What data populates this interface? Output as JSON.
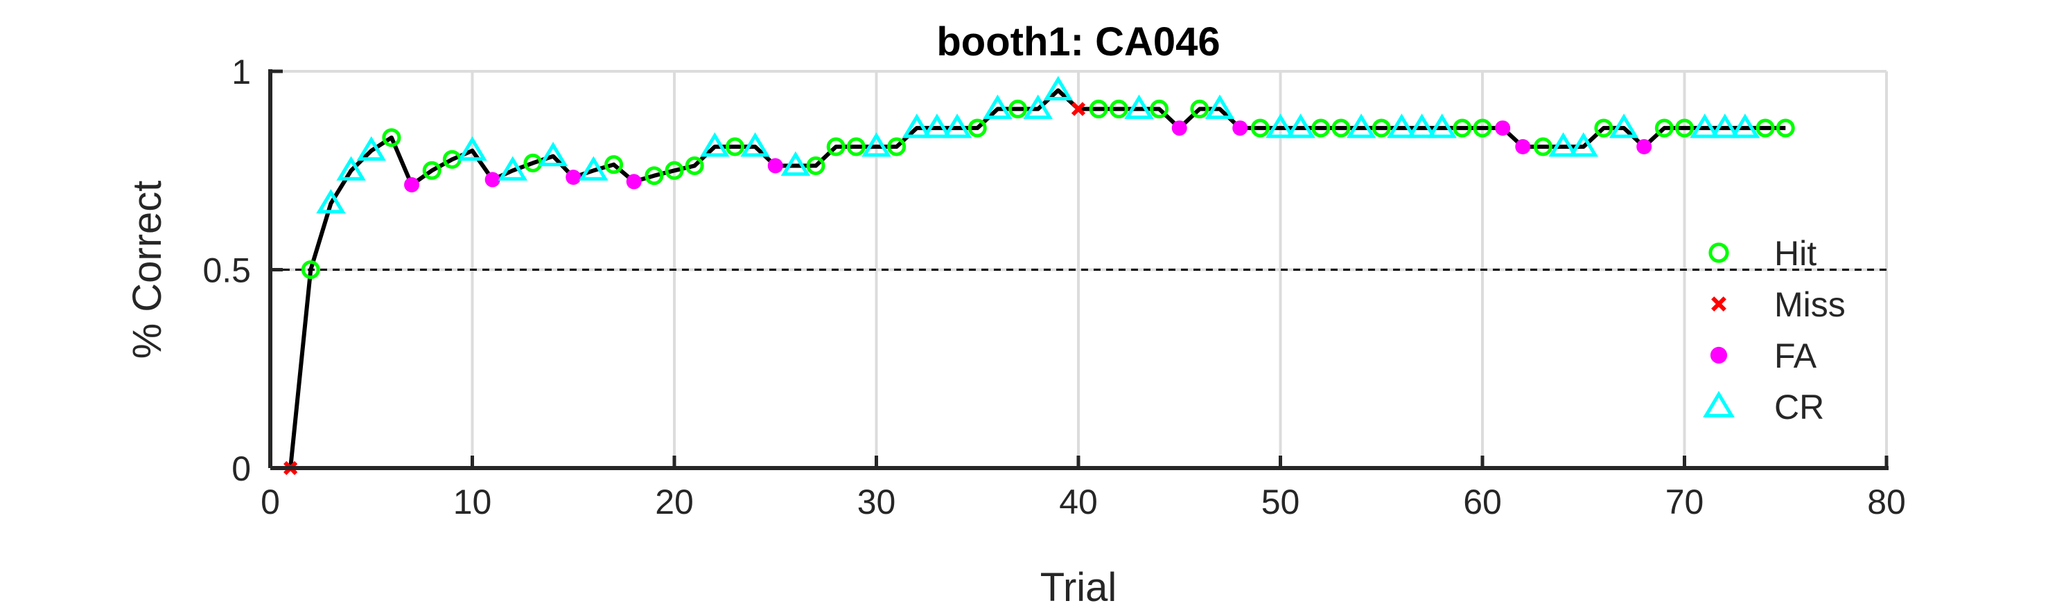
{
  "chart_data": {
    "type": "line",
    "title": "booth1: CA046",
    "xlabel": "Trial",
    "ylabel": "% Correct",
    "xlim": [
      0,
      80
    ],
    "ylim": [
      0,
      1
    ],
    "xticks": [
      0,
      10,
      20,
      30,
      40,
      50,
      60,
      70,
      80
    ],
    "yticks": [
      0,
      0.5,
      1
    ],
    "ytick_labels": [
      "0",
      "0.5",
      "1"
    ],
    "grid": true,
    "reference_line": {
      "y": 0.5,
      "style": "dashed"
    },
    "legend_position": "right",
    "series": [
      {
        "name": "Hit",
        "marker": "circle-open",
        "color": "#00ff00"
      },
      {
        "name": "Miss",
        "marker": "x",
        "color": "#ff0000"
      },
      {
        "name": "FA",
        "marker": "circle-filled",
        "color": "#ff00ff"
      },
      {
        "name": "CR",
        "marker": "triangle-open",
        "color": "#00ffff"
      }
    ],
    "points": [
      {
        "x": 1,
        "y": 0.0,
        "type": "Miss"
      },
      {
        "x": 2,
        "y": 0.5,
        "type": "Hit"
      },
      {
        "x": 3,
        "y": 0.667,
        "type": "CR"
      },
      {
        "x": 4,
        "y": 0.75,
        "type": "CR"
      },
      {
        "x": 5,
        "y": 0.8,
        "type": "CR"
      },
      {
        "x": 6,
        "y": 0.833,
        "type": "Hit"
      },
      {
        "x": 7,
        "y": 0.714,
        "type": "FA"
      },
      {
        "x": 8,
        "y": 0.75,
        "type": "Hit"
      },
      {
        "x": 9,
        "y": 0.778,
        "type": "Hit"
      },
      {
        "x": 10,
        "y": 0.8,
        "type": "CR"
      },
      {
        "x": 11,
        "y": 0.727,
        "type": "FA"
      },
      {
        "x": 12,
        "y": 0.75,
        "type": "CR"
      },
      {
        "x": 13,
        "y": 0.769,
        "type": "Hit"
      },
      {
        "x": 14,
        "y": 0.786,
        "type": "CR"
      },
      {
        "x": 15,
        "y": 0.733,
        "type": "FA"
      },
      {
        "x": 16,
        "y": 0.75,
        "type": "CR"
      },
      {
        "x": 17,
        "y": 0.765,
        "type": "Hit"
      },
      {
        "x": 18,
        "y": 0.722,
        "type": "FA"
      },
      {
        "x": 19,
        "y": 0.737,
        "type": "Hit"
      },
      {
        "x": 20,
        "y": 0.75,
        "type": "Hit"
      },
      {
        "x": 21,
        "y": 0.762,
        "type": "Hit"
      },
      {
        "x": 22,
        "y": 0.81,
        "type": "CR"
      },
      {
        "x": 23,
        "y": 0.81,
        "type": "Hit"
      },
      {
        "x": 24,
        "y": 0.81,
        "type": "CR"
      },
      {
        "x": 25,
        "y": 0.762,
        "type": "FA"
      },
      {
        "x": 26,
        "y": 0.762,
        "type": "CR"
      },
      {
        "x": 27,
        "y": 0.762,
        "type": "Hit"
      },
      {
        "x": 28,
        "y": 0.81,
        "type": "Hit"
      },
      {
        "x": 29,
        "y": 0.81,
        "type": "Hit"
      },
      {
        "x": 30,
        "y": 0.81,
        "type": "CR"
      },
      {
        "x": 31,
        "y": 0.81,
        "type": "Hit"
      },
      {
        "x": 32,
        "y": 0.857,
        "type": "CR"
      },
      {
        "x": 33,
        "y": 0.857,
        "type": "CR"
      },
      {
        "x": 34,
        "y": 0.857,
        "type": "CR"
      },
      {
        "x": 35,
        "y": 0.857,
        "type": "Hit"
      },
      {
        "x": 36,
        "y": 0.905,
        "type": "CR"
      },
      {
        "x": 37,
        "y": 0.905,
        "type": "Hit"
      },
      {
        "x": 38,
        "y": 0.905,
        "type": "CR"
      },
      {
        "x": 39,
        "y": 0.952,
        "type": "CR"
      },
      {
        "x": 40,
        "y": 0.905,
        "type": "Miss"
      },
      {
        "x": 41,
        "y": 0.905,
        "type": "Hit"
      },
      {
        "x": 42,
        "y": 0.905,
        "type": "Hit"
      },
      {
        "x": 43,
        "y": 0.905,
        "type": "CR"
      },
      {
        "x": 44,
        "y": 0.905,
        "type": "Hit"
      },
      {
        "x": 45,
        "y": 0.857,
        "type": "FA"
      },
      {
        "x": 46,
        "y": 0.905,
        "type": "Hit"
      },
      {
        "x": 47,
        "y": 0.905,
        "type": "CR"
      },
      {
        "x": 48,
        "y": 0.857,
        "type": "FA"
      },
      {
        "x": 49,
        "y": 0.857,
        "type": "Hit"
      },
      {
        "x": 50,
        "y": 0.857,
        "type": "CR"
      },
      {
        "x": 51,
        "y": 0.857,
        "type": "CR"
      },
      {
        "x": 52,
        "y": 0.857,
        "type": "Hit"
      },
      {
        "x": 53,
        "y": 0.857,
        "type": "Hit"
      },
      {
        "x": 54,
        "y": 0.857,
        "type": "CR"
      },
      {
        "x": 55,
        "y": 0.857,
        "type": "Hit"
      },
      {
        "x": 56,
        "y": 0.857,
        "type": "CR"
      },
      {
        "x": 57,
        "y": 0.857,
        "type": "CR"
      },
      {
        "x": 58,
        "y": 0.857,
        "type": "CR"
      },
      {
        "x": 59,
        "y": 0.857,
        "type": "Hit"
      },
      {
        "x": 60,
        "y": 0.857,
        "type": "Hit"
      },
      {
        "x": 61,
        "y": 0.857,
        "type": "FA"
      },
      {
        "x": 62,
        "y": 0.81,
        "type": "FA"
      },
      {
        "x": 63,
        "y": 0.81,
        "type": "Hit"
      },
      {
        "x": 64,
        "y": 0.81,
        "type": "CR"
      },
      {
        "x": 65,
        "y": 0.81,
        "type": "CR"
      },
      {
        "x": 66,
        "y": 0.857,
        "type": "Hit"
      },
      {
        "x": 67,
        "y": 0.857,
        "type": "CR"
      },
      {
        "x": 68,
        "y": 0.81,
        "type": "FA"
      },
      {
        "x": 69,
        "y": 0.857,
        "type": "Hit"
      },
      {
        "x": 70,
        "y": 0.857,
        "type": "Hit"
      },
      {
        "x": 71,
        "y": 0.857,
        "type": "CR"
      },
      {
        "x": 72,
        "y": 0.857,
        "type": "CR"
      },
      {
        "x": 73,
        "y": 0.857,
        "type": "CR"
      },
      {
        "x": 74,
        "y": 0.857,
        "type": "Hit"
      },
      {
        "x": 75,
        "y": 0.857,
        "type": "Hit"
      }
    ]
  }
}
